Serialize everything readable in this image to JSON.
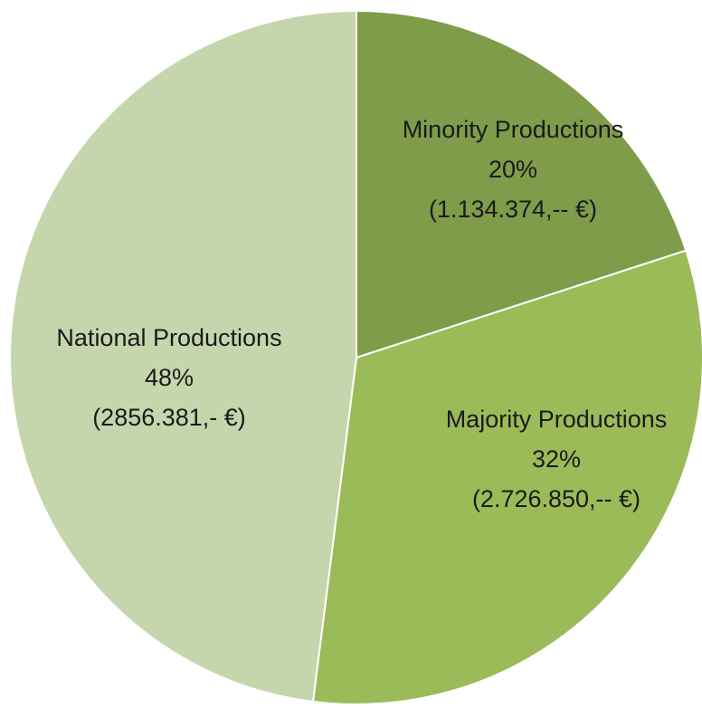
{
  "chart_data": {
    "type": "pie",
    "categories": [
      "Minority Productions",
      "Majority Productions",
      "National Productions"
    ],
    "values": [
      20,
      32,
      48
    ],
    "value_labels": [
      "20%",
      "32%",
      "48%"
    ],
    "amount_labels": [
      "(1.134.374,-- €)",
      "(2.726.850,-- €)",
      "(2856.381,- €)"
    ],
    "colors": [
      "#7f9c4a",
      "#9bbb59",
      "#c5d6ad"
    ]
  }
}
